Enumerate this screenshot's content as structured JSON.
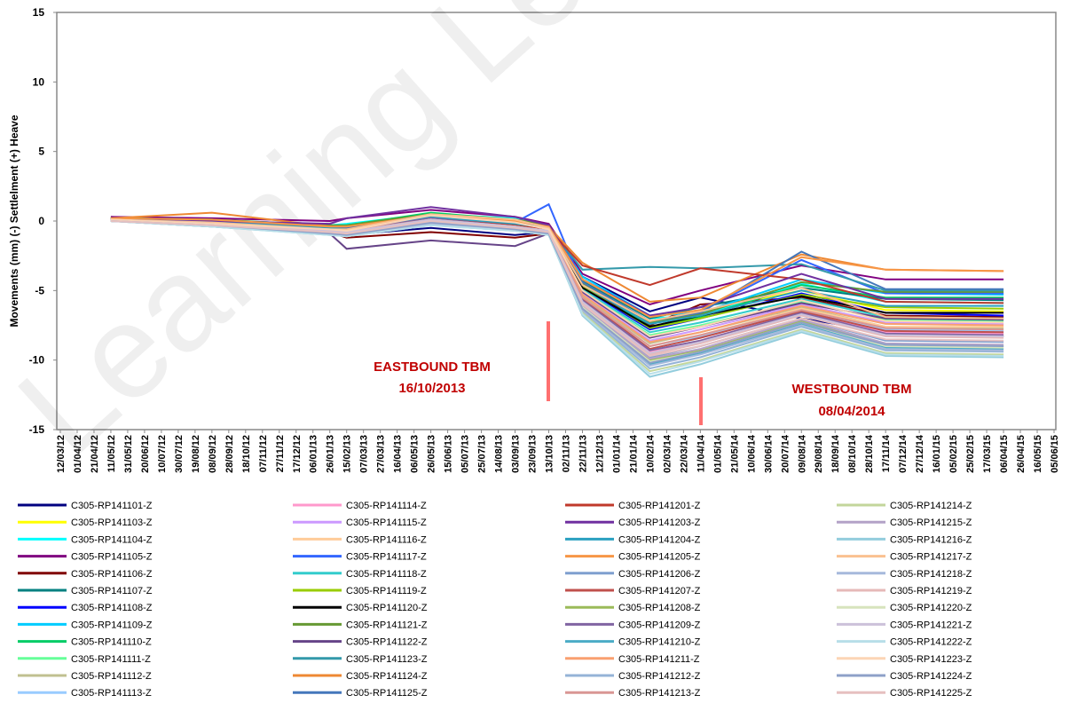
{
  "chart_data": {
    "type": "line",
    "ylabel": "Movements (mm) (-) Settlelment (+) Heave",
    "watermark": "Learning Leg",
    "annotations": [
      {
        "lines": [
          "EASTBOUND TBM",
          "16/10/2013"
        ]
      },
      {
        "lines": [
          "WESTBOUND TBM",
          "08/04/2014"
        ]
      }
    ],
    "ylim": [
      -15,
      15
    ],
    "yticks": [
      -15,
      -10,
      -5,
      0,
      5,
      10,
      15
    ],
    "xlim": [
      "12/03/12",
      "05/06/15"
    ],
    "xticks": [
      "12/03/12",
      "01/04/12",
      "21/04/12",
      "11/05/12",
      "31/05/12",
      "20/06/12",
      "10/07/12",
      "30/07/12",
      "19/08/12",
      "08/09/12",
      "28/09/12",
      "18/10/12",
      "07/11/12",
      "27/11/12",
      "17/12/12",
      "06/01/13",
      "26/01/13",
      "15/02/13",
      "07/03/13",
      "27/03/13",
      "16/04/13",
      "06/05/13",
      "26/05/13",
      "15/06/13",
      "05/07/13",
      "25/07/13",
      "14/08/13",
      "03/09/13",
      "23/09/13",
      "13/10/13",
      "02/11/13",
      "22/11/13",
      "12/12/13",
      "01/01/14",
      "21/01/14",
      "10/02/14",
      "02/03/14",
      "22/03/14",
      "11/04/14",
      "01/05/14",
      "21/05/14",
      "10/06/14",
      "30/06/14",
      "20/07/14",
      "09/08/14",
      "29/08/14",
      "18/09/14",
      "08/10/14",
      "28/10/14",
      "17/11/14",
      "07/12/14",
      "27/12/14",
      "16/01/15",
      "05/02/15",
      "25/02/15",
      "17/03/15",
      "06/04/15",
      "26/04/15",
      "16/05/15",
      "05/06/15"
    ],
    "grid": false,
    "x": [
      "11/05/12",
      "08/09/12",
      "26/01/13",
      "15/02/13",
      "26/05/13",
      "03/09/13",
      "13/10/13",
      "22/11/13",
      "10/02/14",
      "11/04/14",
      "09/08/14",
      "17/11/14",
      "06/04/15"
    ],
    "series": [
      {
        "name": "C305-RP141101-Z",
        "color": "#000080",
        "values": [
          0.2,
          0,
          -0.5,
          -1,
          -0.5,
          -1,
          -0.8,
          -4,
          -6.5,
          -5.5,
          -7,
          -8,
          -8.3
        ]
      },
      {
        "name": "C305-RP141103-Z",
        "color": "#ffff00",
        "values": [
          0.1,
          -0.2,
          -0.6,
          -0.4,
          -0.2,
          -0.6,
          -0.5,
          -4.5,
          -7.2,
          -6.5,
          -5,
          -6.4,
          -6.5
        ]
      },
      {
        "name": "C305-RP141104-Z",
        "color": "#00ffff",
        "values": [
          0.2,
          0.1,
          -0.3,
          -0.2,
          0.5,
          0.2,
          -0.3,
          -4.2,
          -7,
          -6.8,
          -4.5,
          -5.8,
          -5.9
        ]
      },
      {
        "name": "C305-RP141105-Z",
        "color": "#800080",
        "values": [
          0.3,
          0.2,
          0,
          0.2,
          0.8,
          0.3,
          -0.2,
          -3.8,
          -6,
          -5,
          -3.2,
          -4.2,
          -4.2
        ]
      },
      {
        "name": "C305-RP141106-Z",
        "color": "#800000",
        "values": [
          0.1,
          0,
          -0.8,
          -1.2,
          -0.8,
          -1.2,
          -0.9,
          -4.6,
          -7.5,
          -6,
          -5.5,
          -6.8,
          -6.9
        ]
      },
      {
        "name": "C305-RP141107-Z",
        "color": "#008080",
        "values": [
          0.2,
          0.1,
          -0.4,
          -0.6,
          0.2,
          -0.3,
          -0.5,
          -4.3,
          -7,
          -6.2,
          -4.8,
          -5.6,
          -5.7
        ]
      },
      {
        "name": "C305-RP141108-Z",
        "color": "#0000ff",
        "values": [
          0.2,
          0,
          -0.5,
          -0.8,
          -0.2,
          -0.6,
          -0.6,
          -4.8,
          -7.8,
          -7,
          -5.2,
          -6.6,
          -6.8
        ]
      },
      {
        "name": "C305-RP141109-Z",
        "color": "#00ccff",
        "values": [
          0.1,
          0,
          -0.3,
          -0.4,
          0.4,
          0,
          -0.4,
          -4,
          -6.8,
          -6.6,
          -4.2,
          -5.2,
          -5.3
        ]
      },
      {
        "name": "C305-RP141110-Z",
        "color": "#00cc66",
        "values": [
          0.2,
          0.1,
          -0.4,
          -0.3,
          0.6,
          0.1,
          -0.3,
          -4.4,
          -7.6,
          -6.9,
          -4.6,
          -5.5,
          -5.5
        ]
      },
      {
        "name": "C305-RP141111-Z",
        "color": "#66ff99",
        "values": [
          0.1,
          -0.1,
          -0.6,
          -0.5,
          0.3,
          -0.2,
          -0.5,
          -5,
          -8.2,
          -7.5,
          -5.8,
          -7.1,
          -7.2
        ]
      },
      {
        "name": "C305-RP141112-Z",
        "color": "#c0c090",
        "values": [
          0,
          -0.2,
          -0.7,
          -0.6,
          0.1,
          -0.4,
          -0.6,
          -5.4,
          -8.8,
          -8,
          -6.2,
          -7.6,
          -7.7
        ]
      },
      {
        "name": "C305-RP141113-Z",
        "color": "#99ccff",
        "values": [
          0.1,
          -0.1,
          -0.5,
          -0.5,
          0.2,
          -0.3,
          -0.5,
          -5.6,
          -9,
          -8.3,
          -6.4,
          -7.8,
          -7.9
        ]
      },
      {
        "name": "C305-RP141114-Z",
        "color": "#ff99cc",
        "values": [
          0,
          -0.3,
          -0.8,
          -0.7,
          0,
          -0.5,
          -0.7,
          -5.8,
          -9.4,
          -8.6,
          -6.6,
          -8,
          -8.1
        ]
      },
      {
        "name": "C305-RP141115-Z",
        "color": "#cc99ff",
        "values": [
          0.1,
          -0.2,
          -0.6,
          -0.6,
          0.2,
          -0.3,
          -0.6,
          -5.2,
          -8.6,
          -7.8,
          -6,
          -7.3,
          -7.4
        ]
      },
      {
        "name": "C305-RP141116-Z",
        "color": "#ffcc99",
        "values": [
          0,
          -0.3,
          -0.7,
          -0.8,
          0.1,
          -0.4,
          -0.7,
          -5.5,
          -9,
          -8.2,
          -6.3,
          -7.6,
          -7.6
        ]
      },
      {
        "name": "C305-RP141117-Z",
        "color": "#3366ff",
        "values": [
          0.1,
          0,
          -0.4,
          -0.5,
          0.3,
          -0.1,
          1.2,
          -4.6,
          -7.4,
          -6.5,
          -2.8,
          -5.2,
          -5.2
        ]
      },
      {
        "name": "C305-RP141118-Z",
        "color": "#33cccc",
        "values": [
          0.1,
          -0.1,
          -0.5,
          -0.6,
          0.2,
          -0.2,
          -0.5,
          -4.9,
          -8,
          -7.3,
          -5.6,
          -6.9,
          -7
        ]
      },
      {
        "name": "C305-RP141119-Z",
        "color": "#99cc00",
        "values": [
          0.2,
          0,
          -0.4,
          -0.4,
          0.4,
          0,
          -0.4,
          -4.7,
          -7.7,
          -7,
          -5.3,
          -6.2,
          -6.3
        ]
      },
      {
        "name": "C305-RP141120-Z",
        "color": "#000000",
        "values": [
          0.1,
          -0.1,
          -0.5,
          -0.5,
          0.3,
          -0.2,
          -0.5,
          -4.8,
          -7.6,
          -6.8,
          -5.4,
          -6.6,
          -6.6
        ]
      },
      {
        "name": "C305-RP141121-Z",
        "color": "#669933",
        "values": [
          0.2,
          0.1,
          -0.3,
          -0.3,
          0.5,
          0.1,
          -0.3,
          -4.5,
          -7.3,
          -6.7,
          -4.4,
          -5.1,
          -5.1
        ]
      },
      {
        "name": "C305-RP141122-Z",
        "color": "#664488",
        "values": [
          0,
          -0.2,
          -0.9,
          -2,
          -1.4,
          -1.8,
          -0.9,
          -5.1,
          -8.4,
          -7.6,
          -5.9,
          -7,
          -7.1
        ]
      },
      {
        "name": "C305-RP141123-Z",
        "color": "#3399aa",
        "values": [
          0.1,
          -0.1,
          -0.5,
          -0.6,
          0.2,
          -0.3,
          -0.5,
          -3.5,
          -3.3,
          -3.4,
          -3.1,
          -5,
          -5
        ]
      },
      {
        "name": "C305-RP141124-Z",
        "color": "#ee8833",
        "values": [
          0.2,
          0.6,
          -0.4,
          -0.5,
          0.4,
          0,
          -0.4,
          -3,
          -5.8,
          -5.5,
          -2.4,
          -3.5,
          -3.6
        ]
      },
      {
        "name": "C305-RP141125-Z",
        "color": "#4477bb",
        "values": [
          0.1,
          0,
          -0.5,
          -0.5,
          0.3,
          -0.1,
          -0.4,
          -4.4,
          -7.2,
          -6.6,
          -2.2,
          -4.9,
          -4.9
        ]
      },
      {
        "name": "C305-RP141201-Z",
        "color": "#c0392b",
        "values": [
          0.1,
          -0.1,
          -0.6,
          -0.7,
          0.2,
          -0.3,
          -0.6,
          -3.2,
          -4.6,
          -3.4,
          -4.2,
          -5.8,
          -5.9
        ]
      },
      {
        "name": "C305-RP141203-Z",
        "color": "#7030a0",
        "values": [
          0.1,
          0,
          -0.2,
          0.2,
          1,
          0.3,
          -0.3,
          -4.2,
          -6.8,
          -6.2,
          -3.8,
          -5.6,
          -5.6
        ]
      },
      {
        "name": "C305-RP141204-Z",
        "color": "#2aa0c0",
        "values": [
          0.1,
          -0.1,
          -0.5,
          -0.6,
          0.3,
          -0.2,
          -0.5,
          -4.6,
          -7.4,
          -6.8,
          -5,
          -6.1,
          -6.1
        ]
      },
      {
        "name": "C305-RP141205-Z",
        "color": "#f79646",
        "values": [
          0.2,
          0.1,
          -0.4,
          -0.4,
          0.4,
          0,
          -0.4,
          -4.2,
          -6.9,
          -6.4,
          -2.6,
          -3.5,
          -3.6
        ]
      },
      {
        "name": "C305-RP141206-Z",
        "color": "#7f9fcf",
        "values": [
          0,
          -0.3,
          -0.8,
          -0.8,
          0,
          -0.5,
          -0.8,
          -6,
          -9.8,
          -9,
          -7,
          -8.6,
          -8.7
        ]
      },
      {
        "name": "C305-RP141207-Z",
        "color": "#c0504d",
        "values": [
          0.1,
          -0.2,
          -0.7,
          -0.7,
          0.1,
          -0.4,
          -0.7,
          -5.6,
          -9.2,
          -8.4,
          -6.5,
          -7.9,
          -8
        ]
      },
      {
        "name": "C305-RP141208-Z",
        "color": "#9bbb59",
        "values": [
          0,
          -0.3,
          -0.8,
          -0.9,
          0,
          -0.5,
          -0.8,
          -6.2,
          -10,
          -9.3,
          -7.2,
          -8.9,
          -9
        ]
      },
      {
        "name": "C305-RP141209-Z",
        "color": "#8064a2",
        "values": [
          0.1,
          -0.2,
          -0.7,
          -0.7,
          0.2,
          -0.4,
          -0.7,
          -5.7,
          -9.3,
          -8.6,
          -6.6,
          -8.1,
          -8.2
        ]
      },
      {
        "name": "C305-RP141210-Z",
        "color": "#4bacc6",
        "values": [
          0,
          -0.3,
          -0.9,
          -1,
          -0.1,
          -0.6,
          -0.9,
          -6.3,
          -10.3,
          -9.5,
          -7.4,
          -9.1,
          -9.2
        ]
      },
      {
        "name": "C305-RP141211-Z",
        "color": "#f9a070",
        "values": [
          0.1,
          -0.2,
          -0.7,
          -0.8,
          0.1,
          -0.4,
          -0.7,
          -5.3,
          -8.7,
          -8,
          -6.1,
          -7.4,
          -7.5
        ]
      },
      {
        "name": "C305-RP141212-Z",
        "color": "#95b3d7",
        "values": [
          0,
          -0.4,
          -0.9,
          -1,
          -0.2,
          -0.6,
          -0.9,
          -6.5,
          -10.6,
          -9.8,
          -7.6,
          -9.3,
          -9.4
        ]
      },
      {
        "name": "C305-RP141213-Z",
        "color": "#d99694",
        "values": [
          0.1,
          -0.2,
          -0.7,
          -0.7,
          0.1,
          -0.4,
          -0.7,
          -5.5,
          -9,
          -8.2,
          -6.4,
          -7.7,
          -7.8
        ]
      },
      {
        "name": "C305-RP141214-Z",
        "color": "#c3d69b",
        "values": [
          0,
          -0.4,
          -0.9,
          -1.1,
          -0.2,
          -0.7,
          -1,
          -6.6,
          -10.8,
          -10,
          -7.8,
          -9.5,
          -9.6
        ]
      },
      {
        "name": "C305-RP141215-Z",
        "color": "#b3a2c7",
        "values": [
          0,
          -0.3,
          -0.8,
          -0.9,
          0,
          -0.5,
          -0.8,
          -6.1,
          -9.9,
          -9.2,
          -7.1,
          -8.8,
          -8.9
        ]
      },
      {
        "name": "C305-RP141216-Z",
        "color": "#93cddd",
        "values": [
          0,
          -0.4,
          -1,
          -1.1,
          -0.3,
          -0.7,
          -1,
          -6.8,
          -11.2,
          -10.3,
          -8,
          -9.7,
          -9.8
        ]
      },
      {
        "name": "C305-RP141217-Z",
        "color": "#fac090",
        "values": [
          0.1,
          -0.1,
          -0.6,
          -0.6,
          0.5,
          0.1,
          -0.5,
          -4.6,
          -7.2,
          -6.5,
          -4.8,
          -6.9,
          -7
        ]
      },
      {
        "name": "C305-RP141218-Z",
        "color": "#a6b9dc",
        "values": [
          0,
          -0.4,
          -0.9,
          -1,
          -0.2,
          -0.6,
          -0.9,
          -6.4,
          -10.4,
          -9.6,
          -7.5,
          -9.2,
          -9.3
        ]
      },
      {
        "name": "C305-RP141219-Z",
        "color": "#e6b9b8",
        "values": [
          0.1,
          -0.3,
          -0.8,
          -0.8,
          0.1,
          -0.5,
          -0.8,
          -5.9,
          -9.6,
          -8.8,
          -6.8,
          -8.3,
          -8.4
        ]
      },
      {
        "name": "C305-RP141220-Z",
        "color": "#d7e4bd",
        "values": [
          0,
          -0.3,
          -0.8,
          -0.9,
          0,
          -0.5,
          -0.8,
          -6.2,
          -10.1,
          -9.4,
          -7.3,
          -9,
          -9.1
        ]
      },
      {
        "name": "C305-RP141221-Z",
        "color": "#ccc1da",
        "values": [
          0.1,
          -0.2,
          -0.7,
          -0.8,
          0.1,
          -0.4,
          -0.7,
          -5.8,
          -9.5,
          -8.7,
          -6.7,
          -8.2,
          -8.3
        ]
      },
      {
        "name": "C305-RP141222-Z",
        "color": "#b7dee8",
        "values": [
          0,
          -0.4,
          -1,
          -1.1,
          -0.3,
          -0.7,
          -1,
          -6.7,
          -11,
          -10.1,
          -7.9,
          -9.6,
          -9.7
        ]
      },
      {
        "name": "C305-RP141223-Z",
        "color": "#fcd5b5",
        "values": [
          0.1,
          -0.2,
          -0.6,
          -0.7,
          0.4,
          -0.1,
          -0.6,
          -5,
          -8.3,
          -7.6,
          -5.7,
          -7.2,
          -7.3
        ]
      },
      {
        "name": "C305-RP141224-Z",
        "color": "#8ea0c8",
        "values": [
          0,
          -0.3,
          -0.9,
          -1,
          -0.1,
          -0.6,
          -0.9,
          -6.3,
          -10.2,
          -9.4,
          -7.3,
          -8.9,
          -9
        ]
      },
      {
        "name": "C305-RP141225-Z",
        "color": "#e6c0c0",
        "values": [
          0,
          -0.3,
          -0.8,
          -0.9,
          0,
          -0.5,
          -0.8,
          -6,
          -9.7,
          -9,
          -7,
          -8.5,
          -8.6
        ]
      }
    ]
  }
}
